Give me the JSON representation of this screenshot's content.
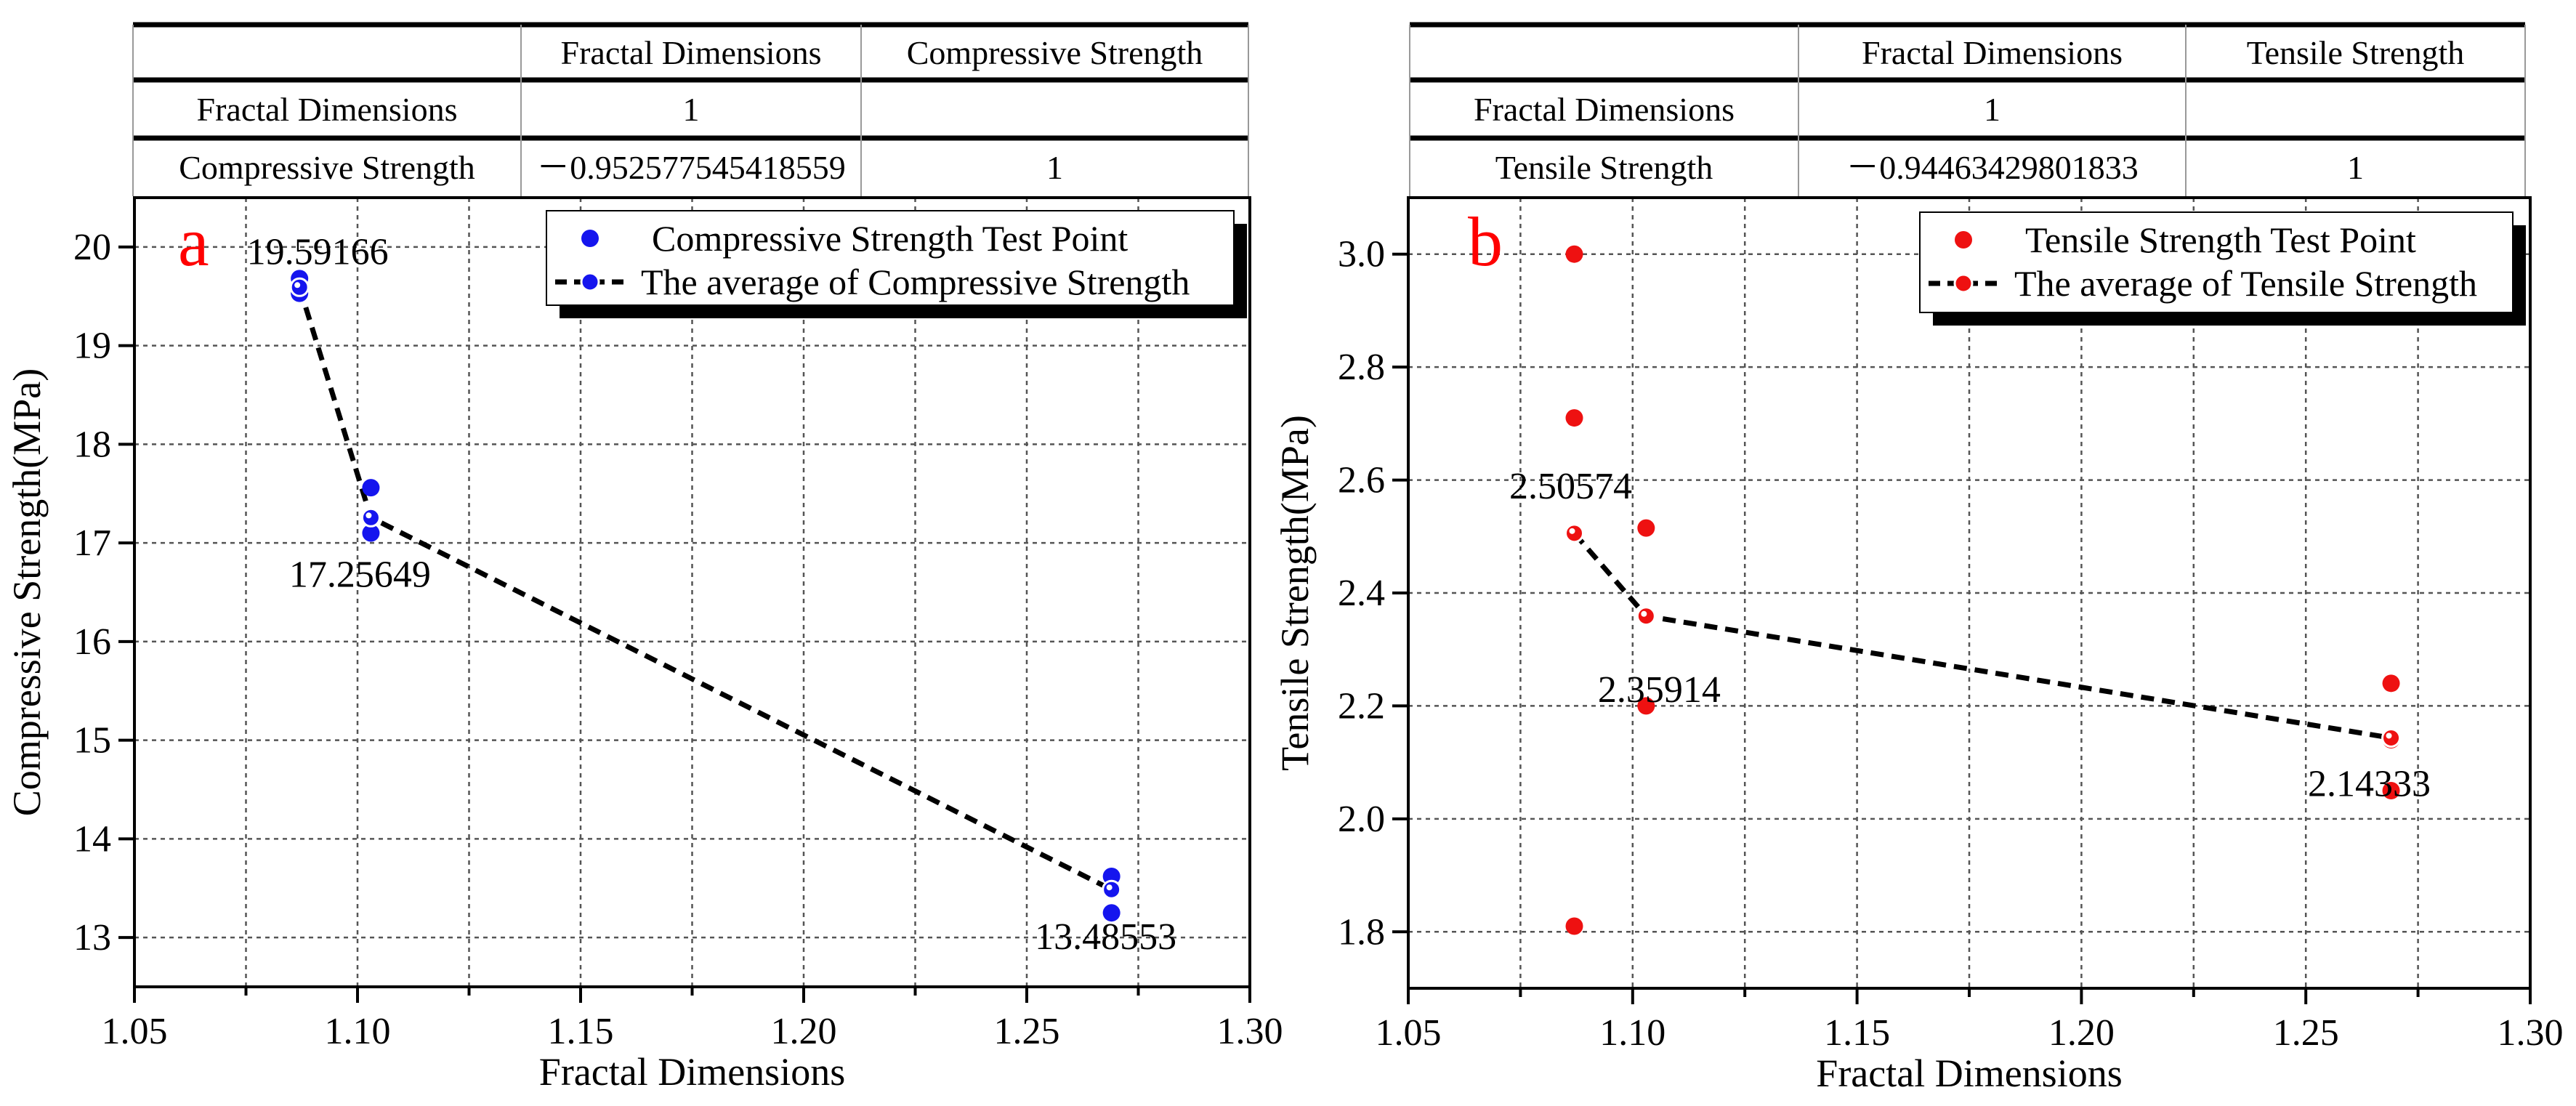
{
  "chart_data": [
    {
      "type": "scatter",
      "panel_letter": "a",
      "xlabel": "Fractal Dimensions",
      "ylabel": "Compressive Strength(MPa)",
      "xlim": [
        1.05,
        1.3
      ],
      "ylim": [
        12.5,
        20.5
      ],
      "xticks": [
        "1.05",
        "1.10",
        "1.15",
        "1.20",
        "1.25",
        "1.30"
      ],
      "yticks": [
        "13",
        "14",
        "15",
        "16",
        "17",
        "18",
        "19",
        "20"
      ],
      "grid": true,
      "legend_placement": "top-right",
      "colors": {
        "points": "#1515ee",
        "line": "#000000",
        "letter": "#ff0000"
      },
      "series": [
        {
          "name": "Compressive Strength Test Point",
          "points": [
            [
              1.087,
              19.68
            ],
            [
              1.087,
              19.6
            ],
            [
              1.087,
              19.53
            ],
            [
              1.103,
              17.56
            ],
            [
              1.103,
              17.25
            ],
            [
              1.103,
              17.1
            ],
            [
              1.269,
              13.62
            ],
            [
              1.269,
              13.49
            ],
            [
              1.269,
              13.25
            ]
          ]
        },
        {
          "name": "The average of Compressive Strength",
          "points": [
            [
              1.087,
              19.59166
            ],
            [
              1.103,
              17.25649
            ],
            [
              1.269,
              13.48553
            ]
          ]
        }
      ],
      "annotations": [
        "19.59166",
        "17.25649",
        "13.48553"
      ],
      "table": {
        "header": [
          "",
          "Fractal Dimensions",
          "Compressive Strength"
        ],
        "rows": [
          [
            "Fractal Dimensions",
            "1",
            ""
          ],
          [
            "Compressive Strength",
            "－0.952577545418559",
            "1"
          ]
        ]
      }
    },
    {
      "type": "scatter",
      "panel_letter": "b",
      "xlabel": "Fractal Dimensions",
      "ylabel": "Tensile Strength(MPa)",
      "xlim": [
        1.05,
        1.3
      ],
      "ylim": [
        1.7,
        3.1
      ],
      "xticks": [
        "1.05",
        "1.10",
        "1.15",
        "1.20",
        "1.25",
        "1.30"
      ],
      "yticks": [
        "1.8",
        "2.0",
        "2.2",
        "2.4",
        "2.6",
        "2.8",
        "3.0"
      ],
      "grid": true,
      "legend_placement": "top-right",
      "colors": {
        "points": "#ee1111",
        "line": "#000000",
        "letter": "#ff0000"
      },
      "series": [
        {
          "name": "Tensile Strength Test Point",
          "points": [
            [
              1.087,
              3.0
            ],
            [
              1.087,
              2.71
            ],
            [
              1.087,
              2.505
            ],
            [
              1.087,
              1.81
            ],
            [
              1.103,
              2.515
            ],
            [
              1.103,
              2.36
            ],
            [
              1.103,
              2.2
            ],
            [
              1.269,
              2.24
            ],
            [
              1.269,
              2.14
            ],
            [
              1.269,
              2.05
            ]
          ]
        },
        {
          "name": "The average of Tensile Strength",
          "points": [
            [
              1.087,
              2.50574
            ],
            [
              1.103,
              2.35914
            ],
            [
              1.269,
              2.14333
            ]
          ]
        }
      ],
      "annotations": [
        "2.50574",
        "2.35914",
        "2.14333"
      ],
      "table": {
        "header": [
          "",
          "Fractal Dimensions",
          "Tensile Strength"
        ],
        "rows": [
          [
            "Fractal Dimensions",
            "1",
            ""
          ],
          [
            "Tensile Strength",
            "－0.94463429801833",
            "1"
          ]
        ]
      }
    }
  ]
}
